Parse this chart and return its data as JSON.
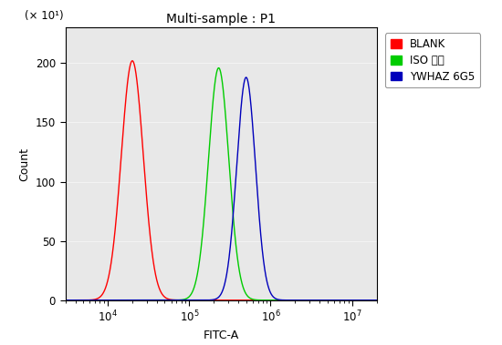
{
  "title": "Multi-sample : P1",
  "xlabel": "FITC-A",
  "ylabel": "Count",
  "y_label_multiplier": "(× 10¹)",
  "ylim": [
    0,
    230
  ],
  "yticks": [
    0,
    50,
    100,
    150,
    200
  ],
  "xlim_log": [
    3000,
    20000000
  ],
  "curves": [
    {
      "label": "BLANK",
      "color": "#ff0000",
      "peak_x": 20000,
      "peak_y": 202,
      "sigma_log": 0.135
    },
    {
      "label": "ISO 单抗",
      "color": "#00cc00",
      "peak_x": 230000,
      "peak_y": 196,
      "sigma_log": 0.125
    },
    {
      "label": "YWHAZ 6G5",
      "color": "#0000bb",
      "peak_x": 500000,
      "peak_y": 188,
      "sigma_log": 0.115
    }
  ],
  "plot_bg_color": "#e8e8e8",
  "background_color": "#ffffff",
  "legend_colors": [
    "#ff0000",
    "#00cc00",
    "#0000bb"
  ],
  "legend_labels": [
    "BLANK",
    "ISO 单抗",
    "YWHAZ 6G5"
  ],
  "legend_fontsize": 8.5,
  "title_fontsize": 10,
  "axis_label_fontsize": 9,
  "tick_fontsize": 8.5
}
